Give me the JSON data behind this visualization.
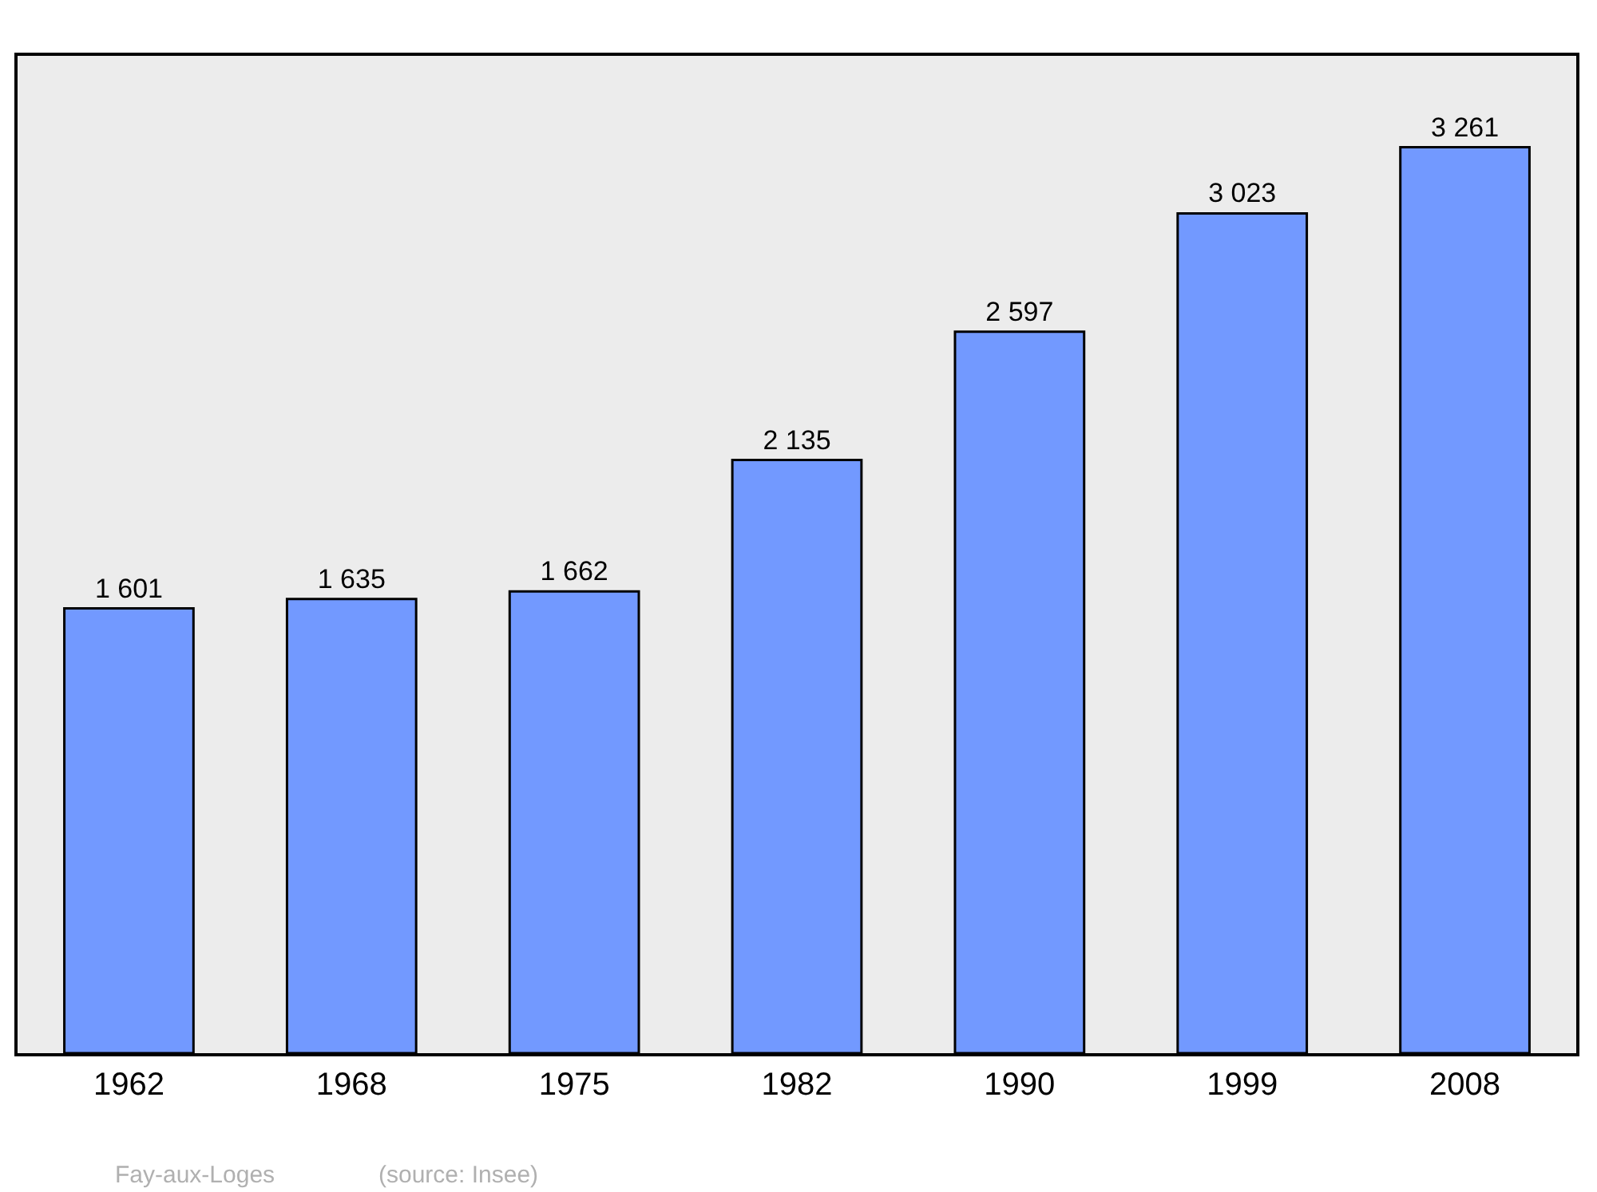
{
  "chart_data": {
    "type": "bar",
    "categories": [
      "1962",
      "1968",
      "1975",
      "1982",
      "1990",
      "1999",
      "2008"
    ],
    "values": [
      1601,
      1635,
      1662,
      2135,
      2597,
      3023,
      3261
    ],
    "value_labels": [
      "1 601",
      "1 635",
      "1 662",
      "2 135",
      "2 597",
      "3 023",
      "3 261"
    ],
    "color": "#7299ff",
    "ylim": [
      0,
      3590
    ],
    "tick_labels": "x",
    "grid": false,
    "legend": false,
    "annotations": [
      "Fay-aux-Loges",
      "(source: Insee)"
    ]
  }
}
